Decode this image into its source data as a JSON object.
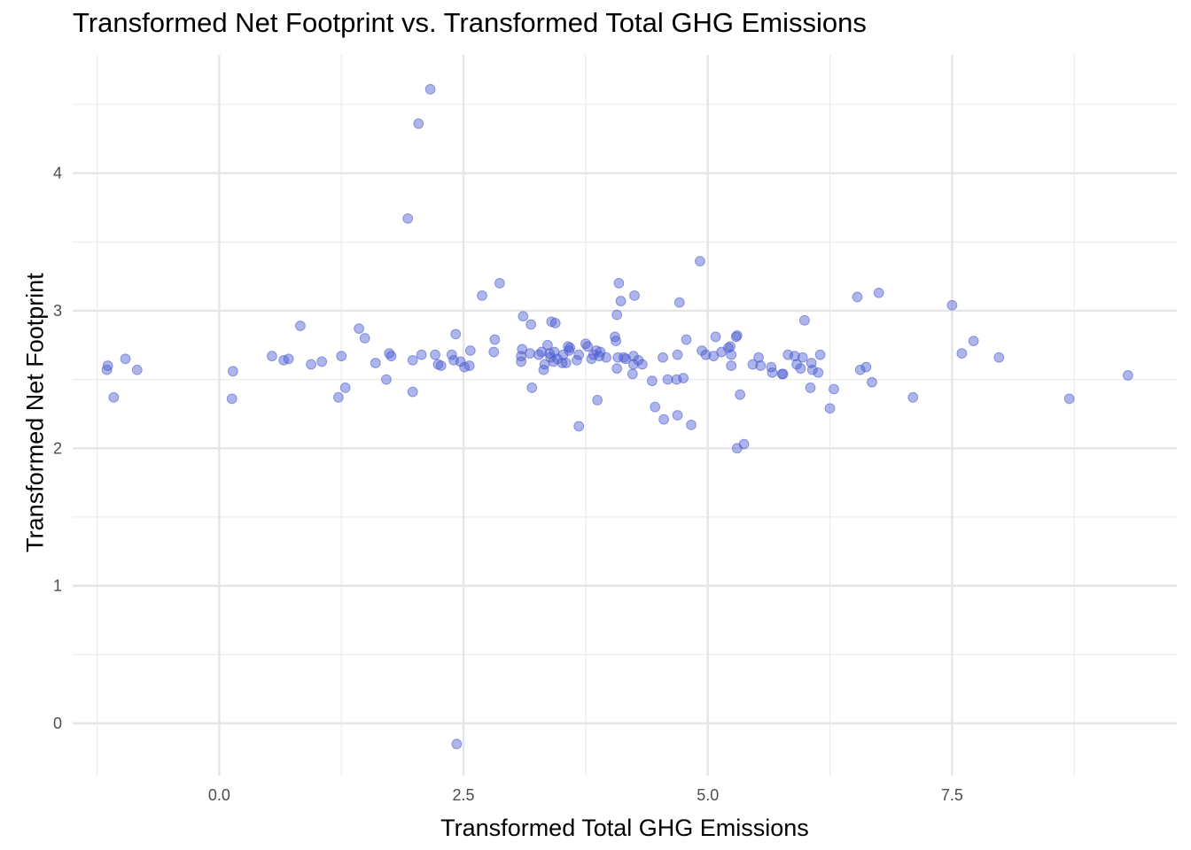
{
  "chart_data": {
    "type": "scatter",
    "title": "Transformed Net Footprint vs. Transformed Total GHG Emissions",
    "xlabel": "Transformed Total GHG Emissions",
    "ylabel": "Transformed Net Footprint",
    "xlim": [
      -1.5,
      9.8
    ],
    "ylim": [
      -0.38,
      4.86
    ],
    "x_ticks": [
      0.0,
      2.5,
      5.0,
      7.5
    ],
    "x_tick_labels": [
      "0.0",
      "2.5",
      "5.0",
      "7.5"
    ],
    "y_ticks": [
      0,
      1,
      2,
      3,
      4
    ],
    "y_tick_labels": [
      "0",
      "1",
      "2",
      "3",
      "4"
    ],
    "grid": true,
    "point_color": "#4a5ad0",
    "points": [
      {
        "x": -1.15,
        "y": 2.57
      },
      {
        "x": -1.14,
        "y": 2.6
      },
      {
        "x": -1.08,
        "y": 2.37
      },
      {
        "x": -0.96,
        "y": 2.65
      },
      {
        "x": -0.84,
        "y": 2.57
      },
      {
        "x": 0.14,
        "y": 2.56
      },
      {
        "x": 0.13,
        "y": 2.36
      },
      {
        "x": 0.54,
        "y": 2.67
      },
      {
        "x": 0.66,
        "y": 2.64
      },
      {
        "x": 0.71,
        "y": 2.65
      },
      {
        "x": 0.83,
        "y": 2.89
      },
      {
        "x": 0.94,
        "y": 2.61
      },
      {
        "x": 1.05,
        "y": 2.63
      },
      {
        "x": 1.22,
        "y": 2.37
      },
      {
        "x": 1.25,
        "y": 2.67
      },
      {
        "x": 1.29,
        "y": 2.44
      },
      {
        "x": 1.43,
        "y": 2.87
      },
      {
        "x": 1.49,
        "y": 2.8
      },
      {
        "x": 1.6,
        "y": 2.62
      },
      {
        "x": 1.71,
        "y": 2.5
      },
      {
        "x": 1.74,
        "y": 2.69
      },
      {
        "x": 1.76,
        "y": 2.67
      },
      {
        "x": 1.93,
        "y": 3.67
      },
      {
        "x": 1.98,
        "y": 2.41
      },
      {
        "x": 1.98,
        "y": 2.64
      },
      {
        "x": 2.04,
        "y": 4.36
      },
      {
        "x": 2.07,
        "y": 2.68
      },
      {
        "x": 2.16,
        "y": 4.61
      },
      {
        "x": 2.21,
        "y": 2.68
      },
      {
        "x": 2.24,
        "y": 2.61
      },
      {
        "x": 2.27,
        "y": 2.6
      },
      {
        "x": 2.38,
        "y": 2.68
      },
      {
        "x": 2.4,
        "y": 2.64
      },
      {
        "x": 2.42,
        "y": 2.83
      },
      {
        "x": 2.43,
        "y": -0.15
      },
      {
        "x": 2.47,
        "y": 2.63
      },
      {
        "x": 2.51,
        "y": 2.59
      },
      {
        "x": 2.56,
        "y": 2.6
      },
      {
        "x": 2.57,
        "y": 2.71
      },
      {
        "x": 2.69,
        "y": 3.11
      },
      {
        "x": 2.81,
        "y": 2.7
      },
      {
        "x": 2.82,
        "y": 2.79
      },
      {
        "x": 2.87,
        "y": 3.2
      },
      {
        "x": 3.09,
        "y": 2.67
      },
      {
        "x": 3.09,
        "y": 2.63
      },
      {
        "x": 3.1,
        "y": 2.72
      },
      {
        "x": 3.11,
        "y": 2.96
      },
      {
        "x": 3.18,
        "y": 2.69
      },
      {
        "x": 3.19,
        "y": 2.9
      },
      {
        "x": 3.2,
        "y": 2.44
      },
      {
        "x": 3.27,
        "y": 2.68
      },
      {
        "x": 3.3,
        "y": 2.7
      },
      {
        "x": 3.32,
        "y": 2.57
      },
      {
        "x": 3.33,
        "y": 2.61
      },
      {
        "x": 3.36,
        "y": 2.75
      },
      {
        "x": 3.38,
        "y": 2.69
      },
      {
        "x": 3.39,
        "y": 2.66
      },
      {
        "x": 3.4,
        "y": 2.92
      },
      {
        "x": 3.42,
        "y": 2.63
      },
      {
        "x": 3.43,
        "y": 2.7
      },
      {
        "x": 3.44,
        "y": 2.91
      },
      {
        "x": 3.46,
        "y": 2.65
      },
      {
        "x": 3.51,
        "y": 2.62
      },
      {
        "x": 3.52,
        "y": 2.68
      },
      {
        "x": 3.55,
        "y": 2.62
      },
      {
        "x": 3.57,
        "y": 2.74
      },
      {
        "x": 3.58,
        "y": 2.71
      },
      {
        "x": 3.59,
        "y": 2.73
      },
      {
        "x": 3.66,
        "y": 2.64
      },
      {
        "x": 3.68,
        "y": 2.68
      },
      {
        "x": 3.68,
        "y": 2.16
      },
      {
        "x": 3.75,
        "y": 2.76
      },
      {
        "x": 3.77,
        "y": 2.74
      },
      {
        "x": 3.81,
        "y": 2.65
      },
      {
        "x": 3.83,
        "y": 2.68
      },
      {
        "x": 3.86,
        "y": 2.71
      },
      {
        "x": 3.87,
        "y": 2.35
      },
      {
        "x": 3.89,
        "y": 2.67
      },
      {
        "x": 3.9,
        "y": 2.7
      },
      {
        "x": 3.96,
        "y": 2.66
      },
      {
        "x": 4.05,
        "y": 2.81
      },
      {
        "x": 4.06,
        "y": 2.78
      },
      {
        "x": 4.07,
        "y": 2.97
      },
      {
        "x": 4.07,
        "y": 2.58
      },
      {
        "x": 4.08,
        "y": 2.66
      },
      {
        "x": 4.09,
        "y": 3.2
      },
      {
        "x": 4.11,
        "y": 3.07
      },
      {
        "x": 4.14,
        "y": 2.66
      },
      {
        "x": 4.16,
        "y": 2.65
      },
      {
        "x": 4.23,
        "y": 2.54
      },
      {
        "x": 4.24,
        "y": 2.61
      },
      {
        "x": 4.24,
        "y": 2.67
      },
      {
        "x": 4.25,
        "y": 3.11
      },
      {
        "x": 4.29,
        "y": 2.64
      },
      {
        "x": 4.33,
        "y": 2.61
      },
      {
        "x": 4.43,
        "y": 2.49
      },
      {
        "x": 4.46,
        "y": 2.3
      },
      {
        "x": 4.54,
        "y": 2.66
      },
      {
        "x": 4.55,
        "y": 2.21
      },
      {
        "x": 4.59,
        "y": 2.5
      },
      {
        "x": 4.68,
        "y": 2.5
      },
      {
        "x": 4.69,
        "y": 2.68
      },
      {
        "x": 4.69,
        "y": 2.24
      },
      {
        "x": 4.71,
        "y": 3.06
      },
      {
        "x": 4.75,
        "y": 2.51
      },
      {
        "x": 4.78,
        "y": 2.79
      },
      {
        "x": 4.83,
        "y": 2.17
      },
      {
        "x": 4.92,
        "y": 3.36
      },
      {
        "x": 4.94,
        "y": 2.71
      },
      {
        "x": 4.98,
        "y": 2.68
      },
      {
        "x": 5.06,
        "y": 2.67
      },
      {
        "x": 5.08,
        "y": 2.81
      },
      {
        "x": 5.14,
        "y": 2.7
      },
      {
        "x": 5.21,
        "y": 2.73
      },
      {
        "x": 5.23,
        "y": 2.74
      },
      {
        "x": 5.24,
        "y": 2.68
      },
      {
        "x": 5.24,
        "y": 2.6
      },
      {
        "x": 5.29,
        "y": 2.81
      },
      {
        "x": 5.3,
        "y": 2.82
      },
      {
        "x": 5.3,
        "y": 2.0
      },
      {
        "x": 5.33,
        "y": 2.39
      },
      {
        "x": 5.37,
        "y": 2.03
      },
      {
        "x": 5.46,
        "y": 2.61
      },
      {
        "x": 5.52,
        "y": 2.66
      },
      {
        "x": 5.54,
        "y": 2.6
      },
      {
        "x": 5.65,
        "y": 2.59
      },
      {
        "x": 5.66,
        "y": 2.55
      },
      {
        "x": 5.76,
        "y": 2.54
      },
      {
        "x": 5.77,
        "y": 2.54
      },
      {
        "x": 5.82,
        "y": 2.68
      },
      {
        "x": 5.89,
        "y": 2.67
      },
      {
        "x": 5.91,
        "y": 2.61
      },
      {
        "x": 5.95,
        "y": 2.58
      },
      {
        "x": 5.97,
        "y": 2.66
      },
      {
        "x": 5.99,
        "y": 2.93
      },
      {
        "x": 6.05,
        "y": 2.44
      },
      {
        "x": 6.06,
        "y": 2.62
      },
      {
        "x": 6.07,
        "y": 2.57
      },
      {
        "x": 6.13,
        "y": 2.55
      },
      {
        "x": 6.15,
        "y": 2.68
      },
      {
        "x": 6.25,
        "y": 2.29
      },
      {
        "x": 6.29,
        "y": 2.43
      },
      {
        "x": 6.53,
        "y": 3.1
      },
      {
        "x": 6.56,
        "y": 2.57
      },
      {
        "x": 6.62,
        "y": 2.59
      },
      {
        "x": 6.68,
        "y": 2.48
      },
      {
        "x": 6.75,
        "y": 3.13
      },
      {
        "x": 7.1,
        "y": 2.37
      },
      {
        "x": 7.5,
        "y": 3.04
      },
      {
        "x": 7.6,
        "y": 2.69
      },
      {
        "x": 7.72,
        "y": 2.78
      },
      {
        "x": 7.98,
        "y": 2.66
      },
      {
        "x": 8.7,
        "y": 2.36
      },
      {
        "x": 9.3,
        "y": 2.53
      }
    ]
  }
}
